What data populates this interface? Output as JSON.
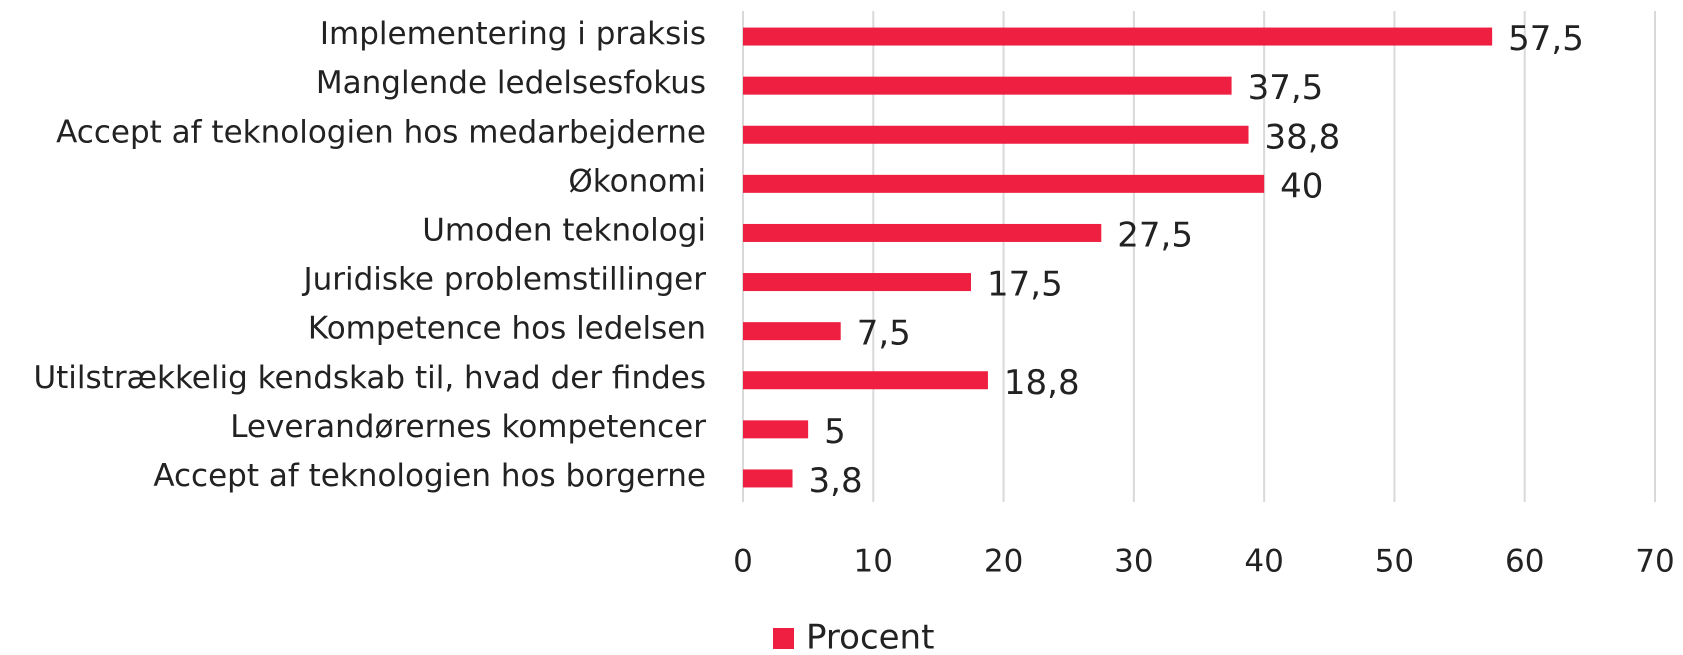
{
  "chart_data": {
    "type": "bar",
    "orientation": "horizontal",
    "categories": [
      "Implementering i praksis",
      "Manglende ledelsesfokus",
      "Accept af teknologien hos medarbejderne",
      "Økonomi",
      "Umoden teknologi",
      "Juridiske problemstillinger",
      "Kompetence hos ledelsen",
      "Utilstrækkelig kendskab til, hvad der findes",
      "Leverandørernes kompetencer",
      "Accept af teknologien hos borgerne"
    ],
    "series": [
      {
        "name": "Procent",
        "color": "#ee1f41",
        "values": [
          57.5,
          37.5,
          38.8,
          40,
          27.5,
          17.5,
          7.5,
          18.8,
          5,
          3.8
        ],
        "value_labels": [
          "57,5",
          "37,5",
          "38,8",
          "40",
          "27,5",
          "17,5",
          "7,5",
          "18,8",
          "5",
          "3,8"
        ]
      }
    ],
    "xlim": [
      0,
      70
    ],
    "xticks": [
      0,
      10,
      20,
      30,
      40,
      50,
      60,
      70
    ],
    "grid": true,
    "legend": "bottom"
  }
}
